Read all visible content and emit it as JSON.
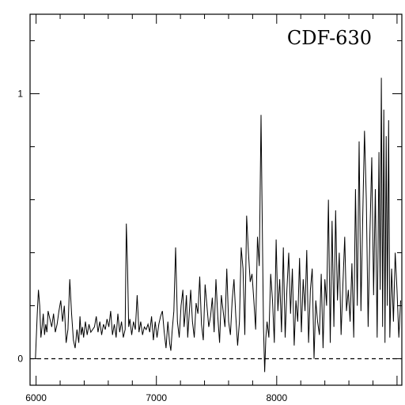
{
  "chart_data": {
    "type": "line",
    "title": "CDF-630",
    "xlabel": "",
    "ylabel": "",
    "xlim": [
      5950,
      9040
    ],
    "ylim": [
      -0.1,
      1.3
    ],
    "x_ticks": [
      6000,
      7000,
      8000
    ],
    "y_ticks": [
      0,
      1
    ],
    "grid": false,
    "zero_line": {
      "y": 0,
      "style": "dashed"
    },
    "colors": {
      "line": "#000000",
      "axes": "#000000",
      "background": "#ffffff"
    },
    "series": [
      {
        "x": [
          5995,
          6010,
          6020,
          6030,
          6040,
          6050,
          6060,
          6070,
          6080,
          6090,
          6100,
          6115,
          6130,
          6145,
          6160,
          6175,
          6190,
          6205,
          6220,
          6235,
          6250,
          6265,
          6280,
          6295,
          6310,
          6325,
          6340,
          6355,
          6365,
          6375,
          6385,
          6395,
          6410,
          6425,
          6440,
          6455,
          6470,
          6485,
          6500,
          6515,
          6530,
          6545,
          6560,
          6575,
          6590,
          6605,
          6620,
          6635,
          6650,
          6665,
          6680,
          6695,
          6710,
          6725,
          6740,
          6750,
          6760,
          6770,
          6780,
          6795,
          6810,
          6825,
          6840,
          6855,
          6870,
          6885,
          6900,
          6915,
          6930,
          6945,
          6960,
          6975,
          6990,
          7005,
          7020,
          7035,
          7050,
          7065,
          7080,
          7095,
          7110,
          7120,
          7130,
          7145,
          7160,
          7175,
          7190,
          7205,
          7220,
          7230,
          7240,
          7250,
          7260,
          7270,
          7285,
          7300,
          7315,
          7330,
          7345,
          7360,
          7375,
          7390,
          7405,
          7420,
          7435,
          7450,
          7465,
          7480,
          7495,
          7510,
          7525,
          7540,
          7555,
          7570,
          7585,
          7600,
          7615,
          7630,
          7645,
          7660,
          7675,
          7690,
          7705,
          7720,
          7735,
          7750,
          7765,
          7780,
          7795,
          7810,
          7825,
          7840,
          7855,
          7870,
          7880,
          7890,
          7900,
          7910,
          7920,
          7935,
          7950,
          7965,
          7980,
          7995,
          8010,
          8025,
          8040,
          8055,
          8070,
          8085,
          8100,
          8115,
          8130,
          8145,
          8160,
          8175,
          8190,
          8205,
          8220,
          8235,
          8250,
          8265,
          8280,
          8295,
          8310,
          8325,
          8340,
          8355,
          8370,
          8385,
          8400,
          8415,
          8430,
          8445,
          8460,
          8475,
          8490,
          8505,
          8520,
          8535,
          8550,
          8565,
          8580,
          8595,
          8610,
          8625,
          8640,
          8655,
          8670,
          8685,
          8700,
          8715,
          8730,
          8745,
          8760,
          8775,
          8790,
          8805,
          8820,
          8835,
          8850,
          8860,
          8870,
          8880,
          8890,
          8900,
          8910,
          8920,
          8930,
          8940,
          8955,
          8970,
          8985,
          9000,
          9015,
          9030
        ],
        "y": [
          0.0,
          0.17,
          0.26,
          0.2,
          0.08,
          0.12,
          0.17,
          0.09,
          0.13,
          0.1,
          0.18,
          0.15,
          0.12,
          0.17,
          0.1,
          0.13,
          0.18,
          0.22,
          0.14,
          0.2,
          0.06,
          0.11,
          0.3,
          0.17,
          0.07,
          0.04,
          0.11,
          0.06,
          0.16,
          0.09,
          0.12,
          0.08,
          0.14,
          0.09,
          0.13,
          0.1,
          0.11,
          0.12,
          0.16,
          0.1,
          0.14,
          0.09,
          0.13,
          0.11,
          0.15,
          0.12,
          0.18,
          0.09,
          0.13,
          0.08,
          0.17,
          0.1,
          0.14,
          0.08,
          0.11,
          0.51,
          0.35,
          0.12,
          0.15,
          0.09,
          0.14,
          0.11,
          0.24,
          0.1,
          0.14,
          0.09,
          0.12,
          0.11,
          0.13,
          0.1,
          0.16,
          0.07,
          0.14,
          0.08,
          0.13,
          0.16,
          0.18,
          0.1,
          0.04,
          0.14,
          0.06,
          0.03,
          0.1,
          0.18,
          0.42,
          0.14,
          0.08,
          0.2,
          0.26,
          0.12,
          0.17,
          0.24,
          0.08,
          0.15,
          0.26,
          0.14,
          0.08,
          0.21,
          0.17,
          0.31,
          0.13,
          0.07,
          0.28,
          0.2,
          0.12,
          0.16,
          0.23,
          0.1,
          0.3,
          0.16,
          0.06,
          0.24,
          0.18,
          0.12,
          0.34,
          0.14,
          0.09,
          0.22,
          0.3,
          0.16,
          0.05,
          0.14,
          0.42,
          0.34,
          0.09,
          0.54,
          0.4,
          0.29,
          0.32,
          0.22,
          0.11,
          0.46,
          0.35,
          0.92,
          0.5,
          0.12,
          -0.05,
          0.08,
          0.14,
          0.08,
          0.32,
          0.22,
          0.06,
          0.45,
          0.18,
          0.3,
          0.1,
          0.42,
          0.08,
          0.26,
          0.4,
          0.17,
          0.34,
          0.05,
          0.22,
          0.14,
          0.38,
          0.1,
          0.3,
          0.18,
          0.41,
          0.06,
          0.26,
          0.34,
          0.0,
          0.22,
          0.14,
          0.09,
          0.32,
          0.04,
          0.3,
          0.2,
          0.6,
          0.06,
          0.52,
          0.12,
          0.56,
          0.22,
          0.4,
          0.09,
          0.28,
          0.46,
          0.18,
          0.26,
          0.14,
          0.36,
          0.08,
          0.64,
          0.2,
          0.82,
          0.18,
          0.54,
          0.86,
          0.6,
          0.12,
          0.48,
          0.76,
          0.24,
          0.64,
          0.08,
          0.78,
          0.26,
          1.06,
          0.12,
          0.94,
          0.06,
          0.84,
          0.2,
          0.9,
          0.08,
          0.34,
          0.14,
          0.4,
          0.26,
          0.08,
          0.22
        ]
      }
    ]
  }
}
